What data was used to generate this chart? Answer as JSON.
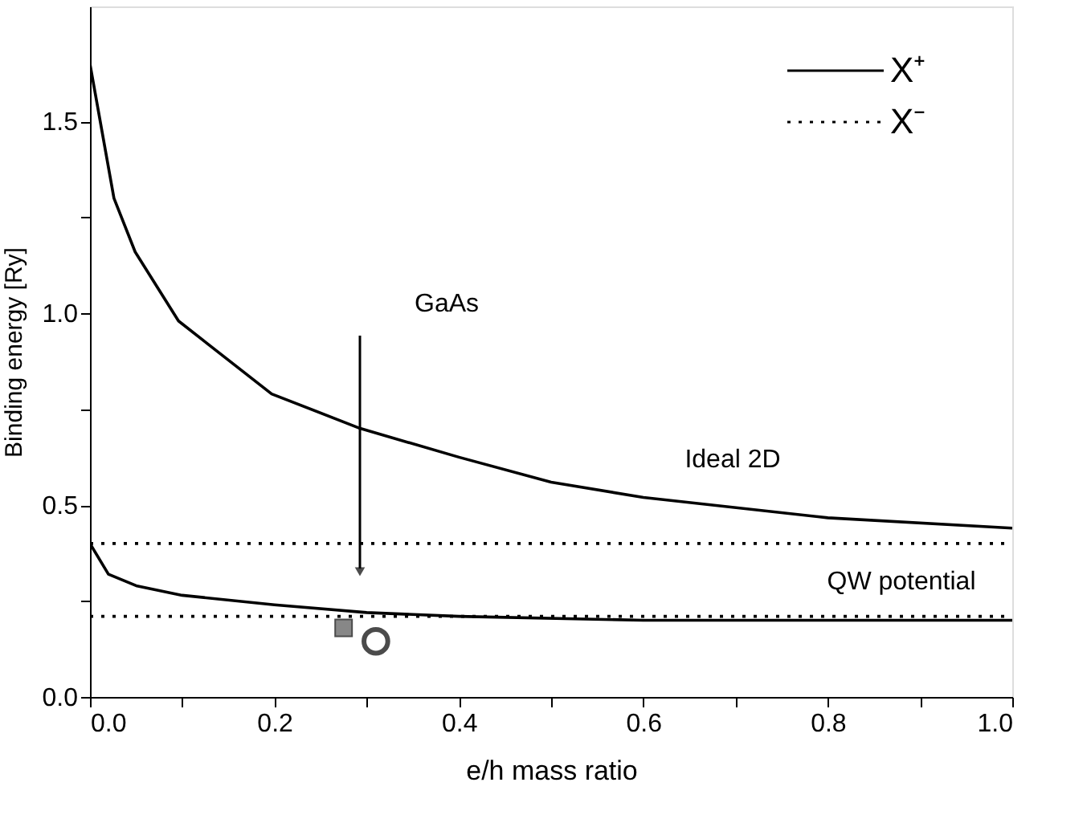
{
  "chart_data": {
    "type": "line",
    "xlabel": "e/h mass ratio",
    "ylabel": "Binding energy [Ry]",
    "xlim": [
      0,
      1.0
    ],
    "ylim": [
      0,
      1.8
    ],
    "xticks": [
      {
        "value": 0,
        "label": "0.0"
      },
      {
        "value": 0.1,
        "label": null
      },
      {
        "value": 0.2,
        "label": "0.2"
      },
      {
        "value": 0.3,
        "label": null
      },
      {
        "value": 0.4,
        "label": "0.4"
      },
      {
        "value": 0.5,
        "label": null
      },
      {
        "value": 0.6,
        "label": "0.6"
      },
      {
        "value": 0.7,
        "label": null
      },
      {
        "value": 0.8,
        "label": "0.8"
      },
      {
        "value": 0.9,
        "label": null
      },
      {
        "value": 1.0,
        "label": "1.0"
      }
    ],
    "yticks": [
      {
        "value": 0,
        "label": "0.0"
      },
      {
        "value": 0.25,
        "label": null
      },
      {
        "value": 0.5,
        "label": "0.5"
      },
      {
        "value": 0.75,
        "label": null
      },
      {
        "value": 1.0,
        "label": "1.0"
      },
      {
        "value": 1.25,
        "label": null
      },
      {
        "value": 1.5,
        "label": "1.5"
      }
    ],
    "grid": false,
    "legend": "top right",
    "series": [
      {
        "name": "X⁺",
        "color": "#000000",
        "line_style": "solid",
        "x": [
          0,
          0.026,
          0.049,
          0.096,
          0.197,
          0.293,
          0.4,
          0.5,
          0.6,
          0.8,
          1.0
        ],
        "values": [
          1.65,
          1.3,
          1.16,
          0.98,
          0.79,
          0.7,
          0.625,
          0.56,
          0.52,
          0.467,
          0.44
        ]
      },
      {
        "name": "X⁻",
        "color": "#000000",
        "line_style": "dotted",
        "x": [
          0,
          1.0
        ],
        "values": [
          0.4,
          0.4
        ]
      },
      {
        "color": "#000000",
        "line_style": "solid",
        "x": [
          0,
          0.02,
          0.05,
          0.1,
          0.2,
          0.3,
          0.4,
          0.6,
          1.0
        ],
        "values": [
          0.4,
          0.32,
          0.29,
          0.265,
          0.24,
          0.22,
          0.21,
          0.2,
          0.2
        ]
      },
      {
        "color": "#000000",
        "line_style": "dotted",
        "x": [
          0,
          1.0
        ],
        "values": [
          0.21,
          0.21
        ]
      },
      {
        "type": "scatter",
        "marker": "square",
        "color": "#555555",
        "x": [
          0.275
        ],
        "values": [
          0.18
        ]
      },
      {
        "type": "scatter",
        "marker": "circle",
        "color": "#000000",
        "x": [
          0.31
        ],
        "values": [
          0.145
        ]
      }
    ],
    "annotations": [
      "GaAs",
      "Ideal 2D",
      "QW potential"
    ]
  }
}
